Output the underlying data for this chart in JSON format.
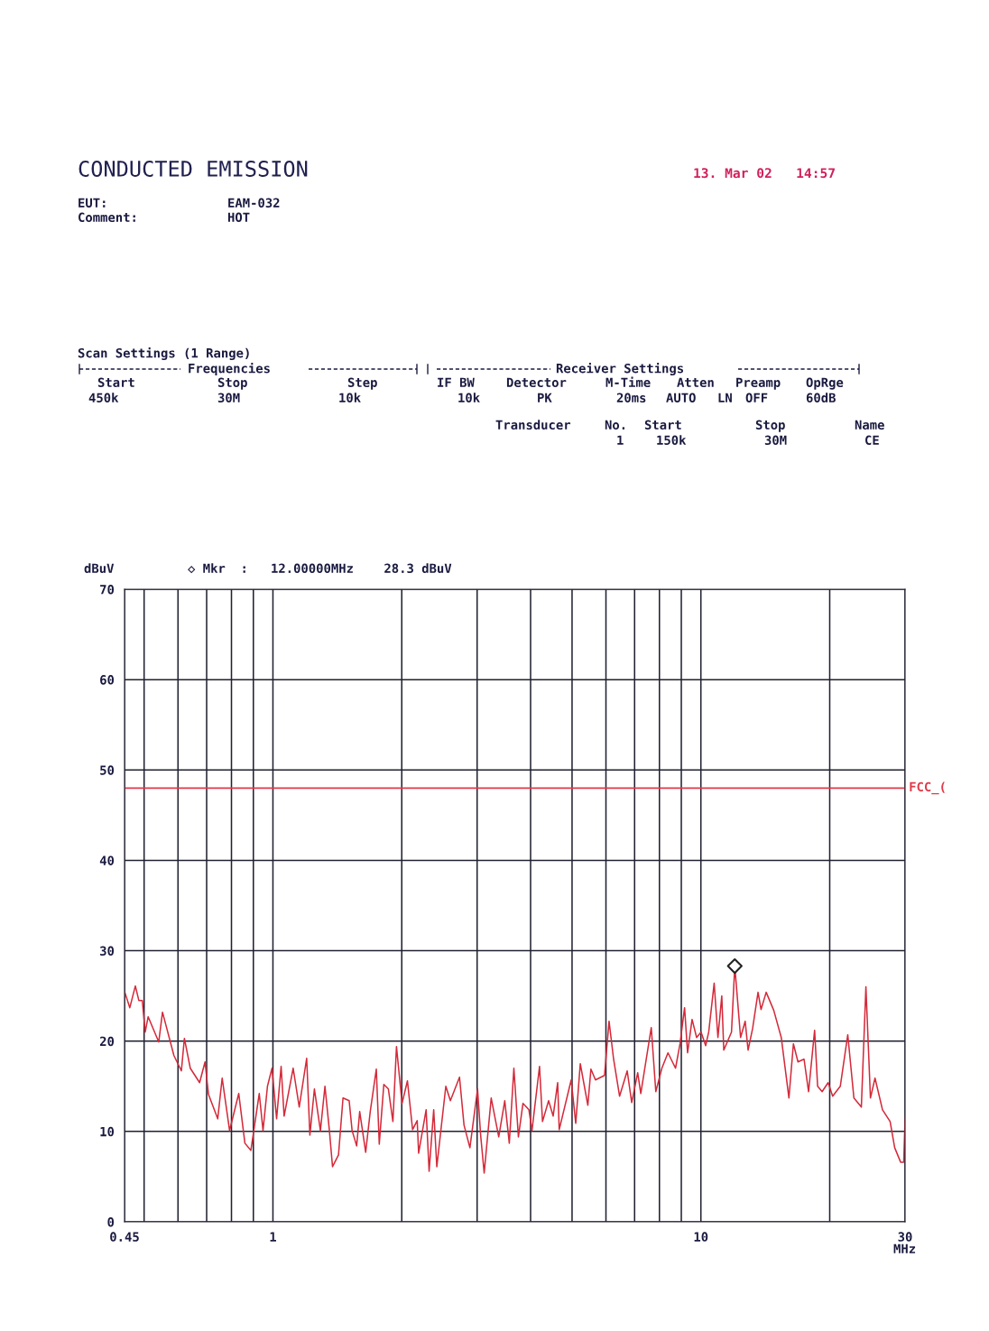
{
  "chart_data": {
    "type": "line",
    "title": "CONDUCTED EMISSION",
    "xlabel": "MHz",
    "ylabel": "dBuV",
    "annotations": [
      "13. Mar 02   14:57",
      "EUT:",
      "EAM-032",
      "Comment:",
      "HOT",
      "Scan Settings (1 Range)",
      "Frequencies",
      "Receiver Settings",
      "Start",
      "Stop",
      "Step",
      "IF BW",
      "Detector",
      "M-Time",
      "Atten",
      "Preamp",
      "OpRge",
      "450k",
      "30M",
      "10k",
      "10k",
      "PK",
      "20ms",
      "AUTO",
      "LN",
      "OFF",
      "60dB",
      "Transducer",
      "No.",
      "Start",
      "Stop",
      "Name",
      "1",
      "150k",
      "30M",
      "CE",
      "◇ Mkr  :   12.00000MHz    28.3 dBuV"
    ],
    "series": [
      {
        "color": "#d42a3a",
        "x": [
          0.45,
          0.463,
          0.477,
          0.486,
          0.495,
          0.503,
          0.511,
          0.541,
          0.552,
          0.587,
          0.611,
          0.621,
          0.641,
          0.674,
          0.694,
          0.707,
          0.743,
          0.761,
          0.792,
          0.832,
          0.86,
          0.888,
          0.929,
          0.948,
          0.971,
          0.995,
          1.02,
          1.045,
          1.062,
          1.115,
          1.152,
          1.199,
          1.22,
          1.25,
          1.291,
          1.323,
          1.355,
          1.378,
          1.423,
          1.458,
          1.507,
          1.531,
          1.569,
          1.595,
          1.647,
          1.688,
          1.744,
          1.772,
          1.816,
          1.861,
          1.907,
          1.944,
          2.003,
          2.062,
          2.12,
          2.173,
          2.19,
          2.28,
          2.317,
          2.375,
          2.415,
          2.535,
          2.598,
          2.729,
          2.796,
          2.886,
          3.007,
          3.056,
          3.116,
          3.236,
          3.37,
          3.481,
          3.567,
          3.656,
          3.746,
          3.839,
          3.964,
          4.03,
          4.197,
          4.265,
          4.407,
          4.516,
          4.627,
          4.666,
          4.977,
          5.1,
          5.226,
          5.443,
          5.534,
          5.671,
          5.954,
          6.101,
          6.252,
          6.457,
          6.727,
          6.892,
          7.118,
          7.237,
          7.657,
          7.846,
          8.107,
          8.377,
          8.724,
          8.939,
          9.16,
          9.309,
          9.537,
          9.772,
          10.01,
          10.26,
          10.43,
          10.74,
          10.96,
          11.19,
          11.31,
          11.79,
          12.0,
          12.38,
          12.69,
          12.89,
          13.21,
          13.6,
          13.82,
          14.21,
          14.8,
          15.41,
          16.06,
          16.45,
          16.86,
          17.42,
          17.85,
          18.44,
          18.74,
          19.2,
          19.83,
          20.32,
          21.17,
          22.04,
          22.78,
          23.71,
          24.3,
          24.9,
          25.52,
          26.57,
          27.68,
          28.37,
          29.29,
          29.78,
          30.0
        ],
        "values": [
          25.5,
          23.7,
          26.1,
          24.5,
          24.5,
          21.0,
          22.7,
          19.9,
          23.2,
          18.4,
          16.7,
          20.3,
          17.0,
          15.4,
          17.7,
          14.1,
          11.4,
          15.9,
          10.1,
          14.2,
          8.7,
          7.9,
          14.2,
          10.1,
          15.0,
          17.0,
          11.4,
          17.2,
          11.7,
          17.0,
          12.7,
          18.1,
          9.6,
          14.7,
          10.1,
          15.0,
          10.1,
          6.1,
          7.4,
          13.7,
          13.4,
          10.1,
          8.4,
          12.2,
          7.7,
          12.2,
          16.9,
          8.6,
          15.2,
          14.7,
          11.1,
          19.4,
          13.1,
          15.6,
          10.2,
          11.2,
          7.6,
          12.4,
          5.6,
          12.4,
          6.1,
          15.0,
          13.4,
          16.0,
          10.7,
          8.2,
          14.7,
          9.7,
          5.4,
          13.7,
          9.4,
          13.4,
          8.7,
          17.0,
          9.4,
          13.1,
          12.4,
          10.1,
          17.2,
          11.1,
          13.4,
          11.7,
          15.4,
          10.2,
          15.7,
          10.9,
          17.5,
          12.9,
          16.9,
          15.7,
          16.2,
          22.2,
          18.0,
          13.9,
          16.7,
          13.2,
          16.5,
          14.2,
          21.5,
          14.4,
          17.0,
          18.7,
          17.0,
          19.7,
          23.7,
          18.7,
          22.4,
          20.4,
          21.0,
          19.5,
          21.0,
          26.4,
          20.4,
          25.0,
          19.0,
          21.0,
          28.3,
          20.4,
          22.2,
          19.0,
          21.4,
          25.4,
          23.5,
          25.4,
          23.4,
          20.4,
          13.7,
          19.7,
          17.7,
          18.0,
          14.4,
          21.2,
          15.0,
          14.4,
          15.4,
          13.9,
          15.0,
          20.7,
          13.7,
          12.7,
          26.0,
          13.7,
          15.9,
          12.4,
          11.1,
          8.2,
          6.6,
          6.6,
          11.4
        ]
      },
      {
        "type": "scatter",
        "color": "#222222",
        "marker": "diamond",
        "x": [
          12.0
        ],
        "values": [
          28.3
        ]
      }
    ],
    "ref_lines": [
      {
        "axis": "y",
        "value": 48,
        "label": "FCC_(",
        "color": "#e03a4a"
      }
    ],
    "log": "x",
    "grid": true,
    "xlim": [
      0.45,
      30
    ],
    "xticks": [
      {
        "value": 0.45,
        "label": "0.45"
      },
      {
        "value": 0.5,
        "label": null
      },
      {
        "value": 0.6,
        "label": null
      },
      {
        "value": 0.7,
        "label": null
      },
      {
        "value": 0.8,
        "label": null
      },
      {
        "value": 0.9,
        "label": null
      },
      1,
      {
        "value": 2,
        "label": null
      },
      {
        "value": 3,
        "label": null
      },
      {
        "value": 4,
        "label": null
      },
      {
        "value": 5,
        "label": null
      },
      {
        "value": 6,
        "label": null
      },
      {
        "value": 7,
        "label": null
      },
      {
        "value": 8,
        "label": null
      },
      {
        "value": 9,
        "label": null
      },
      10,
      {
        "value": 20,
        "label": null
      },
      30
    ],
    "ylim": [
      0,
      70
    ],
    "yticks": [
      0,
      10,
      20,
      30,
      40,
      50,
      60,
      70
    ]
  }
}
